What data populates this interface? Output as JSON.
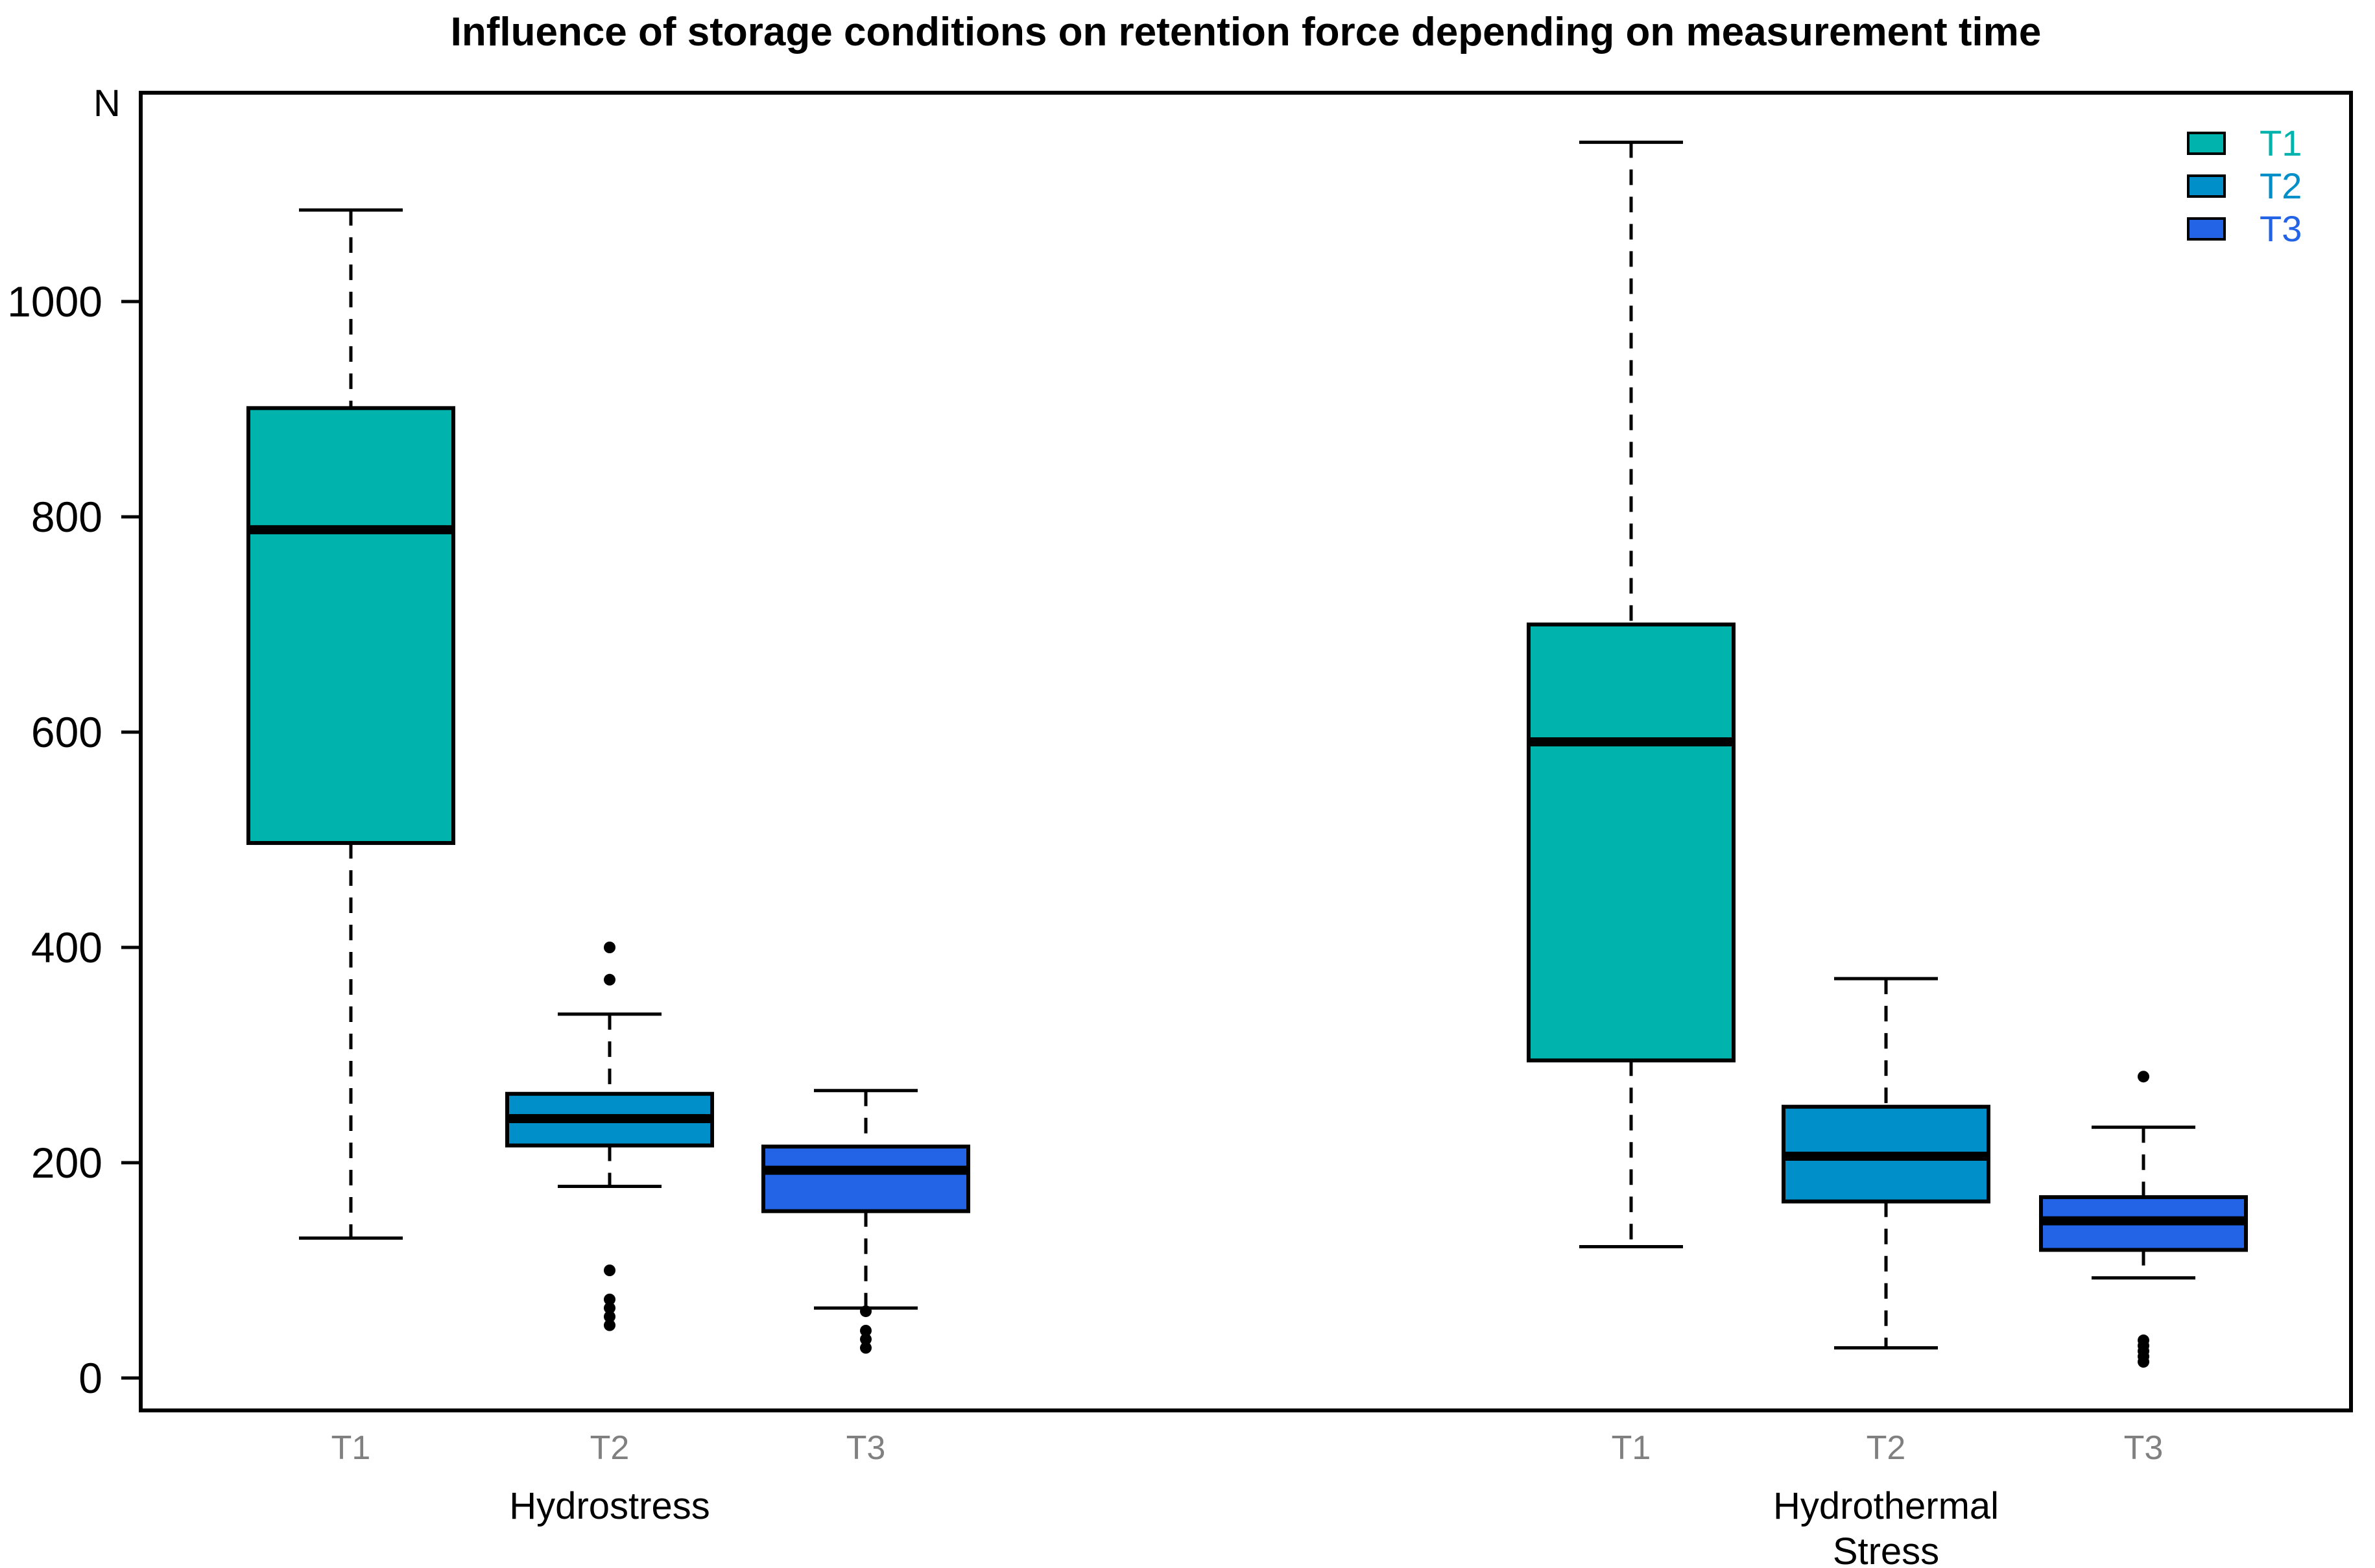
{
  "title": "Influence of storage conditions on retention force depending on measurement time",
  "y_axis": {
    "unit_label": "N",
    "ticks": [
      0,
      200,
      400,
      600,
      800,
      1000
    ]
  },
  "legend": {
    "position": "top-right",
    "items": [
      {
        "label": "T1",
        "color": "#00B3AD"
      },
      {
        "label": "T2",
        "color": "#008FC9"
      },
      {
        "label": "T3",
        "color": "#2264E5"
      }
    ]
  },
  "colors": {
    "box_t1": "#00B3AD",
    "box_t2": "#008FC9",
    "box_t3": "#2264E5",
    "tick_label_gray": "#808080",
    "line_black": "#000000",
    "background": "#ffffff"
  },
  "chart_data": {
    "type": "boxplot",
    "title": "Influence of storage conditions on retention force depending on measurement time",
    "ylabel": "N",
    "ylim": [
      0,
      1150
    ],
    "y_ticks": [
      0,
      200,
      400,
      600,
      800,
      1000
    ],
    "grid": false,
    "legend_entries": [
      "T1",
      "T2",
      "T3"
    ],
    "groups": [
      {
        "label": "Hydrostress",
        "label_lines": [
          "Hydrostress"
        ],
        "boxes": [
          {
            "time": "T1",
            "color": "#00B3AD",
            "whisker_low": 130,
            "q1": 497,
            "median": 788,
            "q3": 901,
            "whisker_high": 1085,
            "outliers": []
          },
          {
            "time": "T2",
            "color": "#008FC9",
            "whisker_low": 178,
            "q1": 216,
            "median": 241,
            "q3": 264,
            "whisker_high": 338,
            "outliers": [
              400,
              370,
              100,
              73,
              65,
              57,
              49
            ]
          },
          {
            "time": "T3",
            "color": "#2264E5",
            "whisker_low": 65,
            "q1": 155,
            "median": 193,
            "q3": 215,
            "whisker_high": 267,
            "outliers": [
              62,
              44,
              36,
              28
            ]
          }
        ]
      },
      {
        "label": "Hydrothermal Stress",
        "label_lines": [
          "Hydrothermal",
          "Stress"
        ],
        "boxes": [
          {
            "time": "T1",
            "color": "#00B3AD",
            "whisker_low": 122,
            "q1": 295,
            "median": 591,
            "q3": 700,
            "whisker_high": 1148,
            "outliers": []
          },
          {
            "time": "T2",
            "color": "#008FC9",
            "whisker_low": 28,
            "q1": 164,
            "median": 206,
            "q3": 252,
            "whisker_high": 371,
            "outliers": []
          },
          {
            "time": "T3",
            "color": "#2264E5",
            "whisker_low": 93,
            "q1": 119,
            "median": 146,
            "q3": 168,
            "whisker_high": 233,
            "outliers": [
              280,
              35,
              30,
              25,
              20,
              15
            ]
          }
        ]
      }
    ]
  }
}
